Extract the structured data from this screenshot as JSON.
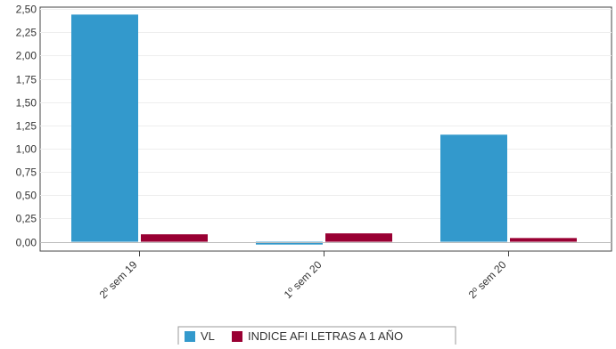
{
  "chart_data": {
    "type": "bar",
    "categories": [
      "2º sem 19",
      "1º sem 20",
      "2º sem 20"
    ],
    "series": [
      {
        "name": "VL",
        "values": [
          2.44,
          -0.03,
          1.15
        ],
        "color": "#3399cc"
      },
      {
        "name": "INDICE AFI LETRAS A 1 AÑO",
        "values": [
          0.08,
          0.09,
          0.04
        ],
        "color": "#990033"
      }
    ],
    "ylim": [
      -0.1,
      2.52
    ],
    "yticks": [
      "0,00",
      "0,25",
      "0,50",
      "0,75",
      "1,00",
      "1,25",
      "1,50",
      "1,75",
      "2,00",
      "2,25",
      "2,50"
    ],
    "ytick_values": [
      0,
      0.25,
      0.5,
      0.75,
      1.0,
      1.25,
      1.5,
      1.75,
      2.0,
      2.25,
      2.5
    ],
    "grid": true,
    "legend_position": "bottom-center",
    "xlabel": "",
    "ylabel": ""
  }
}
